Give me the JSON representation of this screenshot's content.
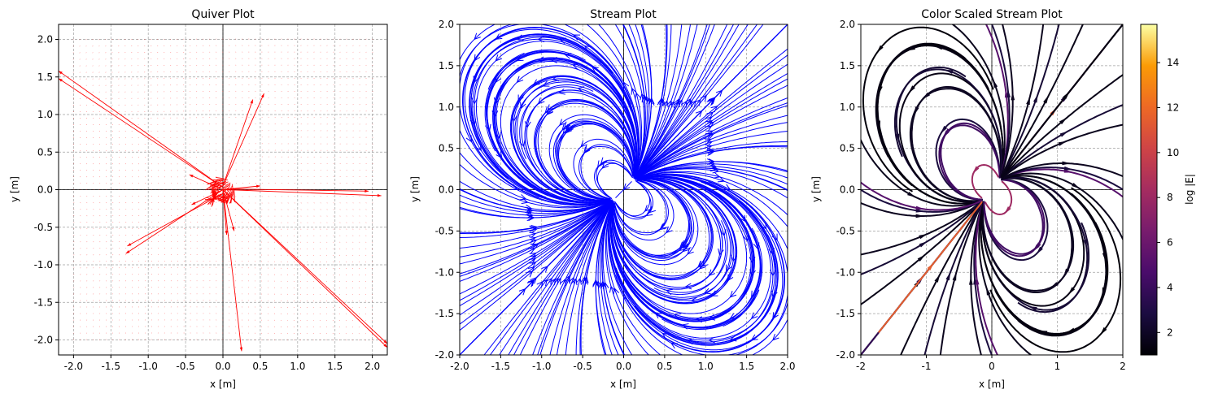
{
  "colors": {
    "quiver": "#ff0000",
    "stream": "#0000ff",
    "grid": "#a0a0a0",
    "colormap": "inferno"
  },
  "chart_data": [
    {
      "type": "quiver",
      "title": "Quiver Plot",
      "xlabel": "x [m]",
      "ylabel": "y [m]",
      "xlim": [
        -2.2,
        2.2
      ],
      "ylim": [
        -2.2,
        2.2
      ],
      "xticks": [
        "-2.0",
        "-1.5",
        "-1.0",
        "-0.5",
        "0.0",
        "0.5",
        "1.0",
        "1.5",
        "2.0"
      ],
      "xtick_values": [
        -2,
        -1.5,
        -1,
        -0.5,
        0,
        0.5,
        1,
        1.5,
        2
      ],
      "yticks": [
        "-2.0",
        "-1.5",
        "-1.0",
        "-0.5",
        "0.0",
        "0.5",
        "1.0",
        "1.5",
        "2.0"
      ],
      "ytick_values": [
        -2,
        -1.5,
        -1,
        -0.5,
        0,
        0.5,
        1,
        1.5,
        2
      ],
      "grid": true,
      "field_domain": [
        -2,
        2
      ],
      "large_arrows": [
        {
          "x0": 0.0,
          "y0": 0.03,
          "x1": -2.2,
          "y1": 1.58
        },
        {
          "x0": 0.0,
          "y0": 0.03,
          "x1": -2.2,
          "y1": 1.48
        },
        {
          "x0": 0.0,
          "y0": 0.0,
          "x1": 2.2,
          "y1": -2.05
        },
        {
          "x0": 0.02,
          "y0": -0.02,
          "x1": 2.2,
          "y1": -2.1
        },
        {
          "x0": 0.05,
          "y0": 0.0,
          "x1": 2.12,
          "y1": -0.08
        },
        {
          "x0": 0.05,
          "y0": 0.01,
          "x1": 1.95,
          "y1": -0.02
        },
        {
          "x0": 0.0,
          "y0": 0.0,
          "x1": 0.25,
          "y1": -2.15
        },
        {
          "x0": 0.0,
          "y0": 0.0,
          "x1": -1.3,
          "y1": -0.85
        },
        {
          "x0": 0.0,
          "y0": -0.05,
          "x1": -1.28,
          "y1": -0.75
        },
        {
          "x0": 0.0,
          "y0": 0.05,
          "x1": 0.55,
          "y1": 1.28
        },
        {
          "x0": 0.0,
          "y0": 0.05,
          "x1": 0.4,
          "y1": 1.2
        },
        {
          "x0": 0.0,
          "y0": 0.0,
          "x1": -0.45,
          "y1": 0.2
        },
        {
          "x0": 0.0,
          "y0": 0.0,
          "x1": -0.42,
          "y1": -0.2
        },
        {
          "x0": 0.0,
          "y0": 0.0,
          "x1": 0.5,
          "y1": 0.05
        },
        {
          "x0": 0.0,
          "y0": 0.0,
          "x1": 0.15,
          "y1": -0.55
        },
        {
          "x0": 0.0,
          "y0": 0.0,
          "x1": 0.05,
          "y1": -0.6
        }
      ]
    },
    {
      "type": "streamplot",
      "title": "Stream Plot",
      "xlabel": "x [m]",
      "ylabel": "y [m]",
      "xlim": [
        -2,
        2
      ],
      "ylim": [
        -2,
        2
      ],
      "xticks": [
        "-2.0",
        "-1.5",
        "-1.0",
        "-0.5",
        "0.0",
        "0.5",
        "1.0",
        "1.5",
        "2.0"
      ],
      "xtick_values": [
        -2,
        -1.5,
        -1,
        -0.5,
        0,
        0.5,
        1,
        1.5,
        2
      ],
      "yticks": [
        "-2.0",
        "-1.5",
        "-1.0",
        "-0.5",
        "0.0",
        "0.5",
        "1.0",
        "1.5",
        "2.0"
      ],
      "ytick_values": [
        -2,
        -1.5,
        -1,
        -0.5,
        0,
        0.5,
        1,
        1.5,
        2
      ],
      "grid": true,
      "line_color": "#0000ff"
    },
    {
      "type": "streamplot",
      "title": "Color Scaled Stream Plot",
      "xlabel": "x [m]",
      "ylabel": "y [m]",
      "xlim": [
        -2,
        2
      ],
      "ylim": [
        -2,
        2
      ],
      "xticks": [
        "-2",
        "-1",
        "0",
        "1",
        "2"
      ],
      "xtick_values": [
        -2,
        -1,
        0,
        1,
        2
      ],
      "yticks": [
        "-2.0",
        "-1.5",
        "-1.0",
        "-0.5",
        "0.0",
        "0.5",
        "1.0",
        "1.5",
        "2.0"
      ],
      "ytick_values": [
        -2,
        -1.5,
        -1,
        -0.5,
        0,
        0.5,
        1,
        1.5,
        2
      ],
      "grid": true,
      "colorbar": {
        "label": "log |E|",
        "range": [
          1,
          15.7
        ],
        "ticks": [
          "2",
          "4",
          "6",
          "8",
          "10",
          "12",
          "14"
        ],
        "tick_values": [
          2,
          4,
          6,
          8,
          10,
          12,
          14
        ],
        "colormap": "inferno"
      }
    }
  ]
}
